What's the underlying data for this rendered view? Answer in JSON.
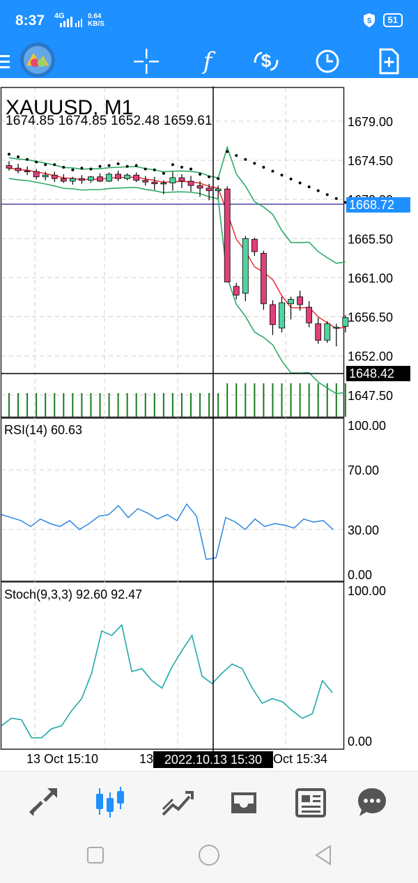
{
  "status_bar": {
    "time": "8:37",
    "signal_label": "4G",
    "speed_value": "0.64",
    "speed_unit": "KB/S",
    "battery": "51"
  },
  "toolbar": {
    "items": [
      "menu-icon",
      "logo",
      "crosshair-icon",
      "indicators-icon",
      "trade-icon",
      "history-icon",
      "new-document-icon"
    ],
    "indicators_glyph": "f"
  },
  "chart": {
    "symbol": "XAUUSD, M1",
    "ohlc": [
      "1674.85",
      "1674.85",
      "1652.48",
      "1659.61"
    ],
    "price_ticks": [
      "1679.00",
      "1674.50",
      "1670.00",
      "1665.50",
      "1661.00",
      "1656.50",
      "1652.00",
      "1647.50"
    ],
    "bid_line_label": "1668.72",
    "crosshair_price_label": "1648.42",
    "time_labels": [
      "13 Oct 15:10",
      "13",
      "Oct 15:34"
    ],
    "crosshair_time_label": "2022.10.13 15:30",
    "colors": {
      "bull": "#4fd4a0",
      "bear": "#e0407a",
      "ma_red": "#ee2222",
      "bands_green": "#2eaa66",
      "volume": "#1a7a1a",
      "rsi": "#2e86de",
      "stoch": "#20a8a8",
      "bid_line": "#7b6fb8",
      "label_bid": "#1e90ff"
    }
  },
  "rsi": {
    "label": "RSI(14) 60.63",
    "ticks": [
      "100.00",
      "70.00",
      "30.00",
      "0.00"
    ]
  },
  "stoch": {
    "label": "Stoch(9,3,3) 92.60 92.47",
    "ticks": [
      "100.00",
      "0.00"
    ]
  },
  "bottom_nav": {
    "items": [
      "quotes-icon",
      "chart-icon",
      "trade-icon",
      "history-icon",
      "news-icon",
      "chat-icon"
    ],
    "active_index": 1
  },
  "chart_data": {
    "type": "candlestick",
    "title": "XAUUSD, M1",
    "y_range": [
      1645,
      1683
    ],
    "candles": [
      {
        "o": 1673.9,
        "h": 1674.4,
        "l": 1673.3,
        "c": 1673.6
      },
      {
        "o": 1673.6,
        "h": 1674.1,
        "l": 1673.0,
        "c": 1673.3
      },
      {
        "o": 1673.3,
        "h": 1673.8,
        "l": 1672.8,
        "c": 1673.2
      },
      {
        "o": 1673.2,
        "h": 1673.5,
        "l": 1672.3,
        "c": 1672.6
      },
      {
        "o": 1672.6,
        "h": 1673.2,
        "l": 1672.2,
        "c": 1672.8
      },
      {
        "o": 1672.8,
        "h": 1673.2,
        "l": 1672.0,
        "c": 1672.4
      },
      {
        "o": 1672.4,
        "h": 1672.9,
        "l": 1671.9,
        "c": 1672.1
      },
      {
        "o": 1672.1,
        "h": 1672.6,
        "l": 1671.7,
        "c": 1672.4
      },
      {
        "o": 1672.4,
        "h": 1672.8,
        "l": 1671.8,
        "c": 1672.2
      },
      {
        "o": 1672.2,
        "h": 1672.7,
        "l": 1671.9,
        "c": 1672.6
      },
      {
        "o": 1672.6,
        "h": 1673.0,
        "l": 1672.0,
        "c": 1672.1
      },
      {
        "o": 1672.1,
        "h": 1673.1,
        "l": 1672.0,
        "c": 1672.9
      },
      {
        "o": 1672.9,
        "h": 1673.3,
        "l": 1672.1,
        "c": 1672.4
      },
      {
        "o": 1672.4,
        "h": 1673.0,
        "l": 1672.2,
        "c": 1672.8
      },
      {
        "o": 1672.8,
        "h": 1673.1,
        "l": 1672.0,
        "c": 1672.2
      },
      {
        "o": 1672.2,
        "h": 1672.7,
        "l": 1671.6,
        "c": 1672.0
      },
      {
        "o": 1672.0,
        "h": 1672.6,
        "l": 1671.1,
        "c": 1671.8
      },
      {
        "o": 1671.8,
        "h": 1672.2,
        "l": 1670.6,
        "c": 1671.9
      },
      {
        "o": 1671.9,
        "h": 1673.2,
        "l": 1671.0,
        "c": 1672.5
      },
      {
        "o": 1672.5,
        "h": 1672.9,
        "l": 1671.3,
        "c": 1672.1
      },
      {
        "o": 1672.1,
        "h": 1672.7,
        "l": 1670.9,
        "c": 1671.6
      },
      {
        "o": 1671.6,
        "h": 1672.1,
        "l": 1670.3,
        "c": 1671.3
      },
      {
        "o": 1671.3,
        "h": 1671.8,
        "l": 1669.9,
        "c": 1671.0
      },
      {
        "o": 1671.0,
        "h": 1671.6,
        "l": 1670.1,
        "c": 1671.2
      },
      {
        "o": 1671.2,
        "h": 1671.5,
        "l": 1660.8,
        "c": 1660.5
      },
      {
        "o": 1660.0,
        "h": 1660.4,
        "l": 1658.5,
        "c": 1659.0
      },
      {
        "o": 1659.2,
        "h": 1665.8,
        "l": 1658.3,
        "c": 1665.5
      },
      {
        "o": 1665.4,
        "h": 1665.6,
        "l": 1663.5,
        "c": 1664.0
      },
      {
        "o": 1663.8,
        "h": 1664.1,
        "l": 1657.3,
        "c": 1658.0
      },
      {
        "o": 1657.9,
        "h": 1658.4,
        "l": 1654.4,
        "c": 1655.6
      },
      {
        "o": 1655.2,
        "h": 1658.8,
        "l": 1654.7,
        "c": 1658.1
      },
      {
        "o": 1658.0,
        "h": 1658.8,
        "l": 1656.2,
        "c": 1658.5
      },
      {
        "o": 1658.8,
        "h": 1659.5,
        "l": 1657.2,
        "c": 1657.9
      },
      {
        "o": 1657.6,
        "h": 1658.3,
        "l": 1655.3,
        "c": 1655.8
      },
      {
        "o": 1655.7,
        "h": 1656.4,
        "l": 1653.4,
        "c": 1653.8
      },
      {
        "o": 1653.8,
        "h": 1656.0,
        "l": 1653.5,
        "c": 1655.7
      },
      {
        "o": 1655.2,
        "h": 1655.7,
        "l": 1653.1,
        "c": 1655.3
      },
      {
        "o": 1655.4,
        "h": 1656.7,
        "l": 1654.7,
        "c": 1656.4
      }
    ]
  }
}
